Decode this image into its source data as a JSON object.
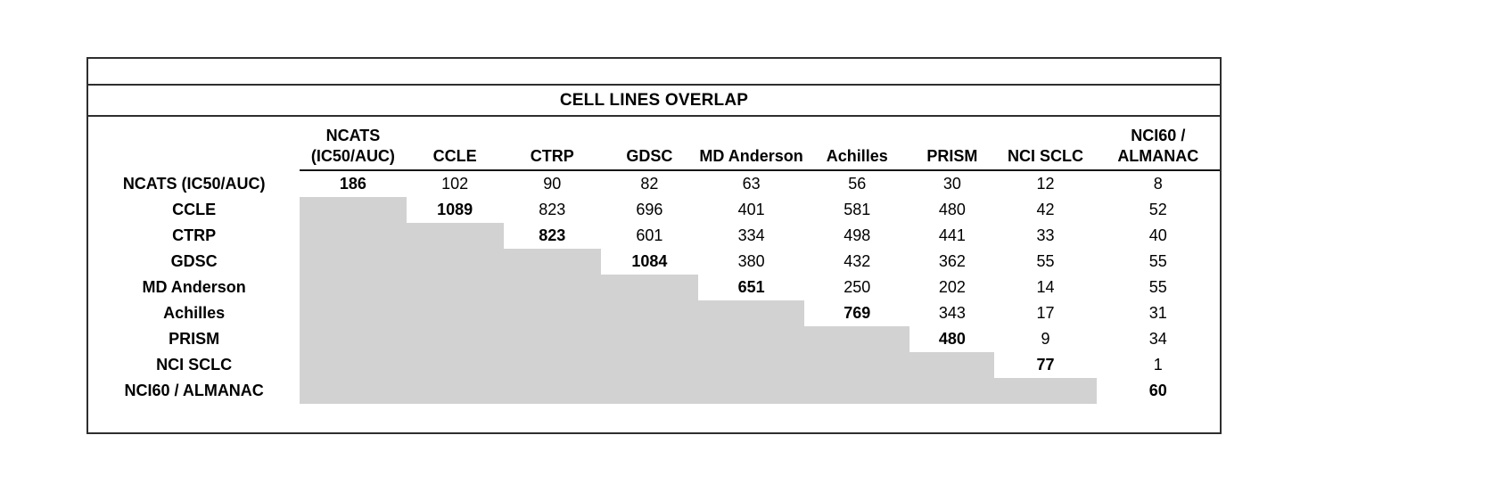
{
  "title": "CELL LINES OVERLAP",
  "colors": {
    "lower_triangle_fill": "#d2d2d2",
    "border": "#2e2e2e",
    "text": "#000000"
  },
  "chart_data": {
    "type": "table",
    "title": "CELL LINES OVERLAP",
    "row_labels": [
      "NCATS (IC50/AUC)",
      "CCLE",
      "CTRP",
      "GDSC",
      "MD Anderson",
      "Achilles",
      "PRISM",
      "NCI SCLC",
      "NCI60 / ALMANAC"
    ],
    "column_labels": [
      "NCATS (IC50/AUC)",
      "CCLE",
      "CTRP",
      "GDSC",
      "MD Anderson",
      "Achilles",
      "PRISM",
      "NCI SCLC",
      "NCI60 / ALMANAC"
    ],
    "column_headers_display": [
      [
        "NCATS",
        "(IC50/AUC)"
      ],
      [
        "CCLE"
      ],
      [
        "CTRP"
      ],
      [
        "GDSC"
      ],
      [
        "MD Anderson"
      ],
      [
        "Achilles"
      ],
      [
        "PRISM"
      ],
      [
        "NCI SCLC"
      ],
      [
        "NCI60 /",
        "ALMANAC"
      ]
    ],
    "matrix": [
      [
        186,
        102,
        90,
        82,
        63,
        56,
        30,
        12,
        8
      ],
      [
        null,
        1089,
        823,
        696,
        401,
        581,
        480,
        42,
        52
      ],
      [
        null,
        null,
        823,
        601,
        334,
        498,
        441,
        33,
        40
      ],
      [
        null,
        null,
        null,
        1084,
        380,
        432,
        362,
        55,
        55
      ],
      [
        null,
        null,
        null,
        null,
        651,
        250,
        202,
        14,
        55
      ],
      [
        null,
        null,
        null,
        null,
        null,
        769,
        343,
        17,
        31
      ],
      [
        null,
        null,
        null,
        null,
        null,
        null,
        480,
        9,
        34
      ],
      [
        null,
        null,
        null,
        null,
        null,
        null,
        null,
        77,
        1
      ],
      [
        null,
        null,
        null,
        null,
        null,
        null,
        null,
        null,
        60
      ]
    ],
    "diagonal_bold": true,
    "lower_triangle_shaded": true
  }
}
